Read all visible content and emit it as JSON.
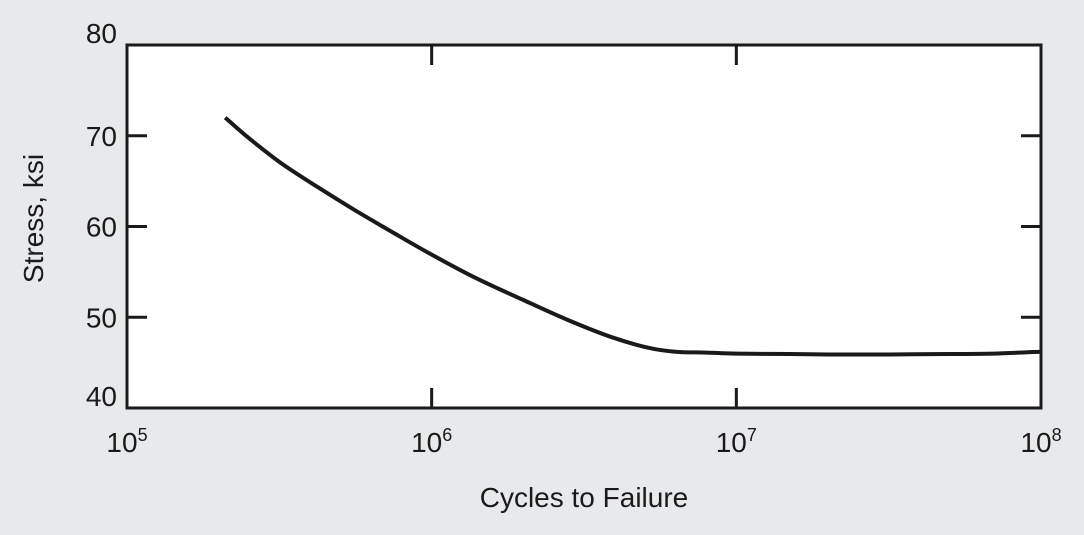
{
  "chart_data": {
    "type": "line",
    "title": "",
    "xlabel": "Cycles to Failure",
    "ylabel": "Stress, ksi",
    "xscale": "log",
    "xlim": [
      100000,
      100000000
    ],
    "ylim": [
      40,
      80
    ],
    "x_ticks": [
      {
        "value": 100000,
        "base": "10",
        "exp": "5"
      },
      {
        "value": 1000000,
        "base": "10",
        "exp": "6"
      },
      {
        "value": 10000000,
        "base": "10",
        "exp": "7"
      },
      {
        "value": 100000000,
        "base": "10",
        "exp": "8"
      }
    ],
    "y_ticks": [
      {
        "value": 40,
        "label": "40"
      },
      {
        "value": 50,
        "label": "50"
      },
      {
        "value": 60,
        "label": "60"
      },
      {
        "value": 70,
        "label": "70"
      },
      {
        "value": 80,
        "label": "80"
      }
    ],
    "grid": false,
    "series": [
      {
        "color": "#1a1a1a",
        "x": [
          210000,
          250000,
          320000,
          420000,
          560000,
          750000,
          1000000,
          1400000,
          2000000,
          2800000,
          3900000,
          5200000,
          6300000,
          8000000,
          10000000,
          15000000,
          20000000,
          30000000,
          50000000,
          70000000,
          100000000
        ],
        "y": [
          72,
          69.8,
          67.0,
          64.4,
          61.8,
          59.3,
          56.9,
          54.3,
          51.9,
          49.7,
          47.8,
          46.6,
          46.2,
          46.1,
          46.0,
          45.95,
          45.9,
          45.9,
          45.95,
          46.0,
          46.2
        ]
      }
    ]
  }
}
